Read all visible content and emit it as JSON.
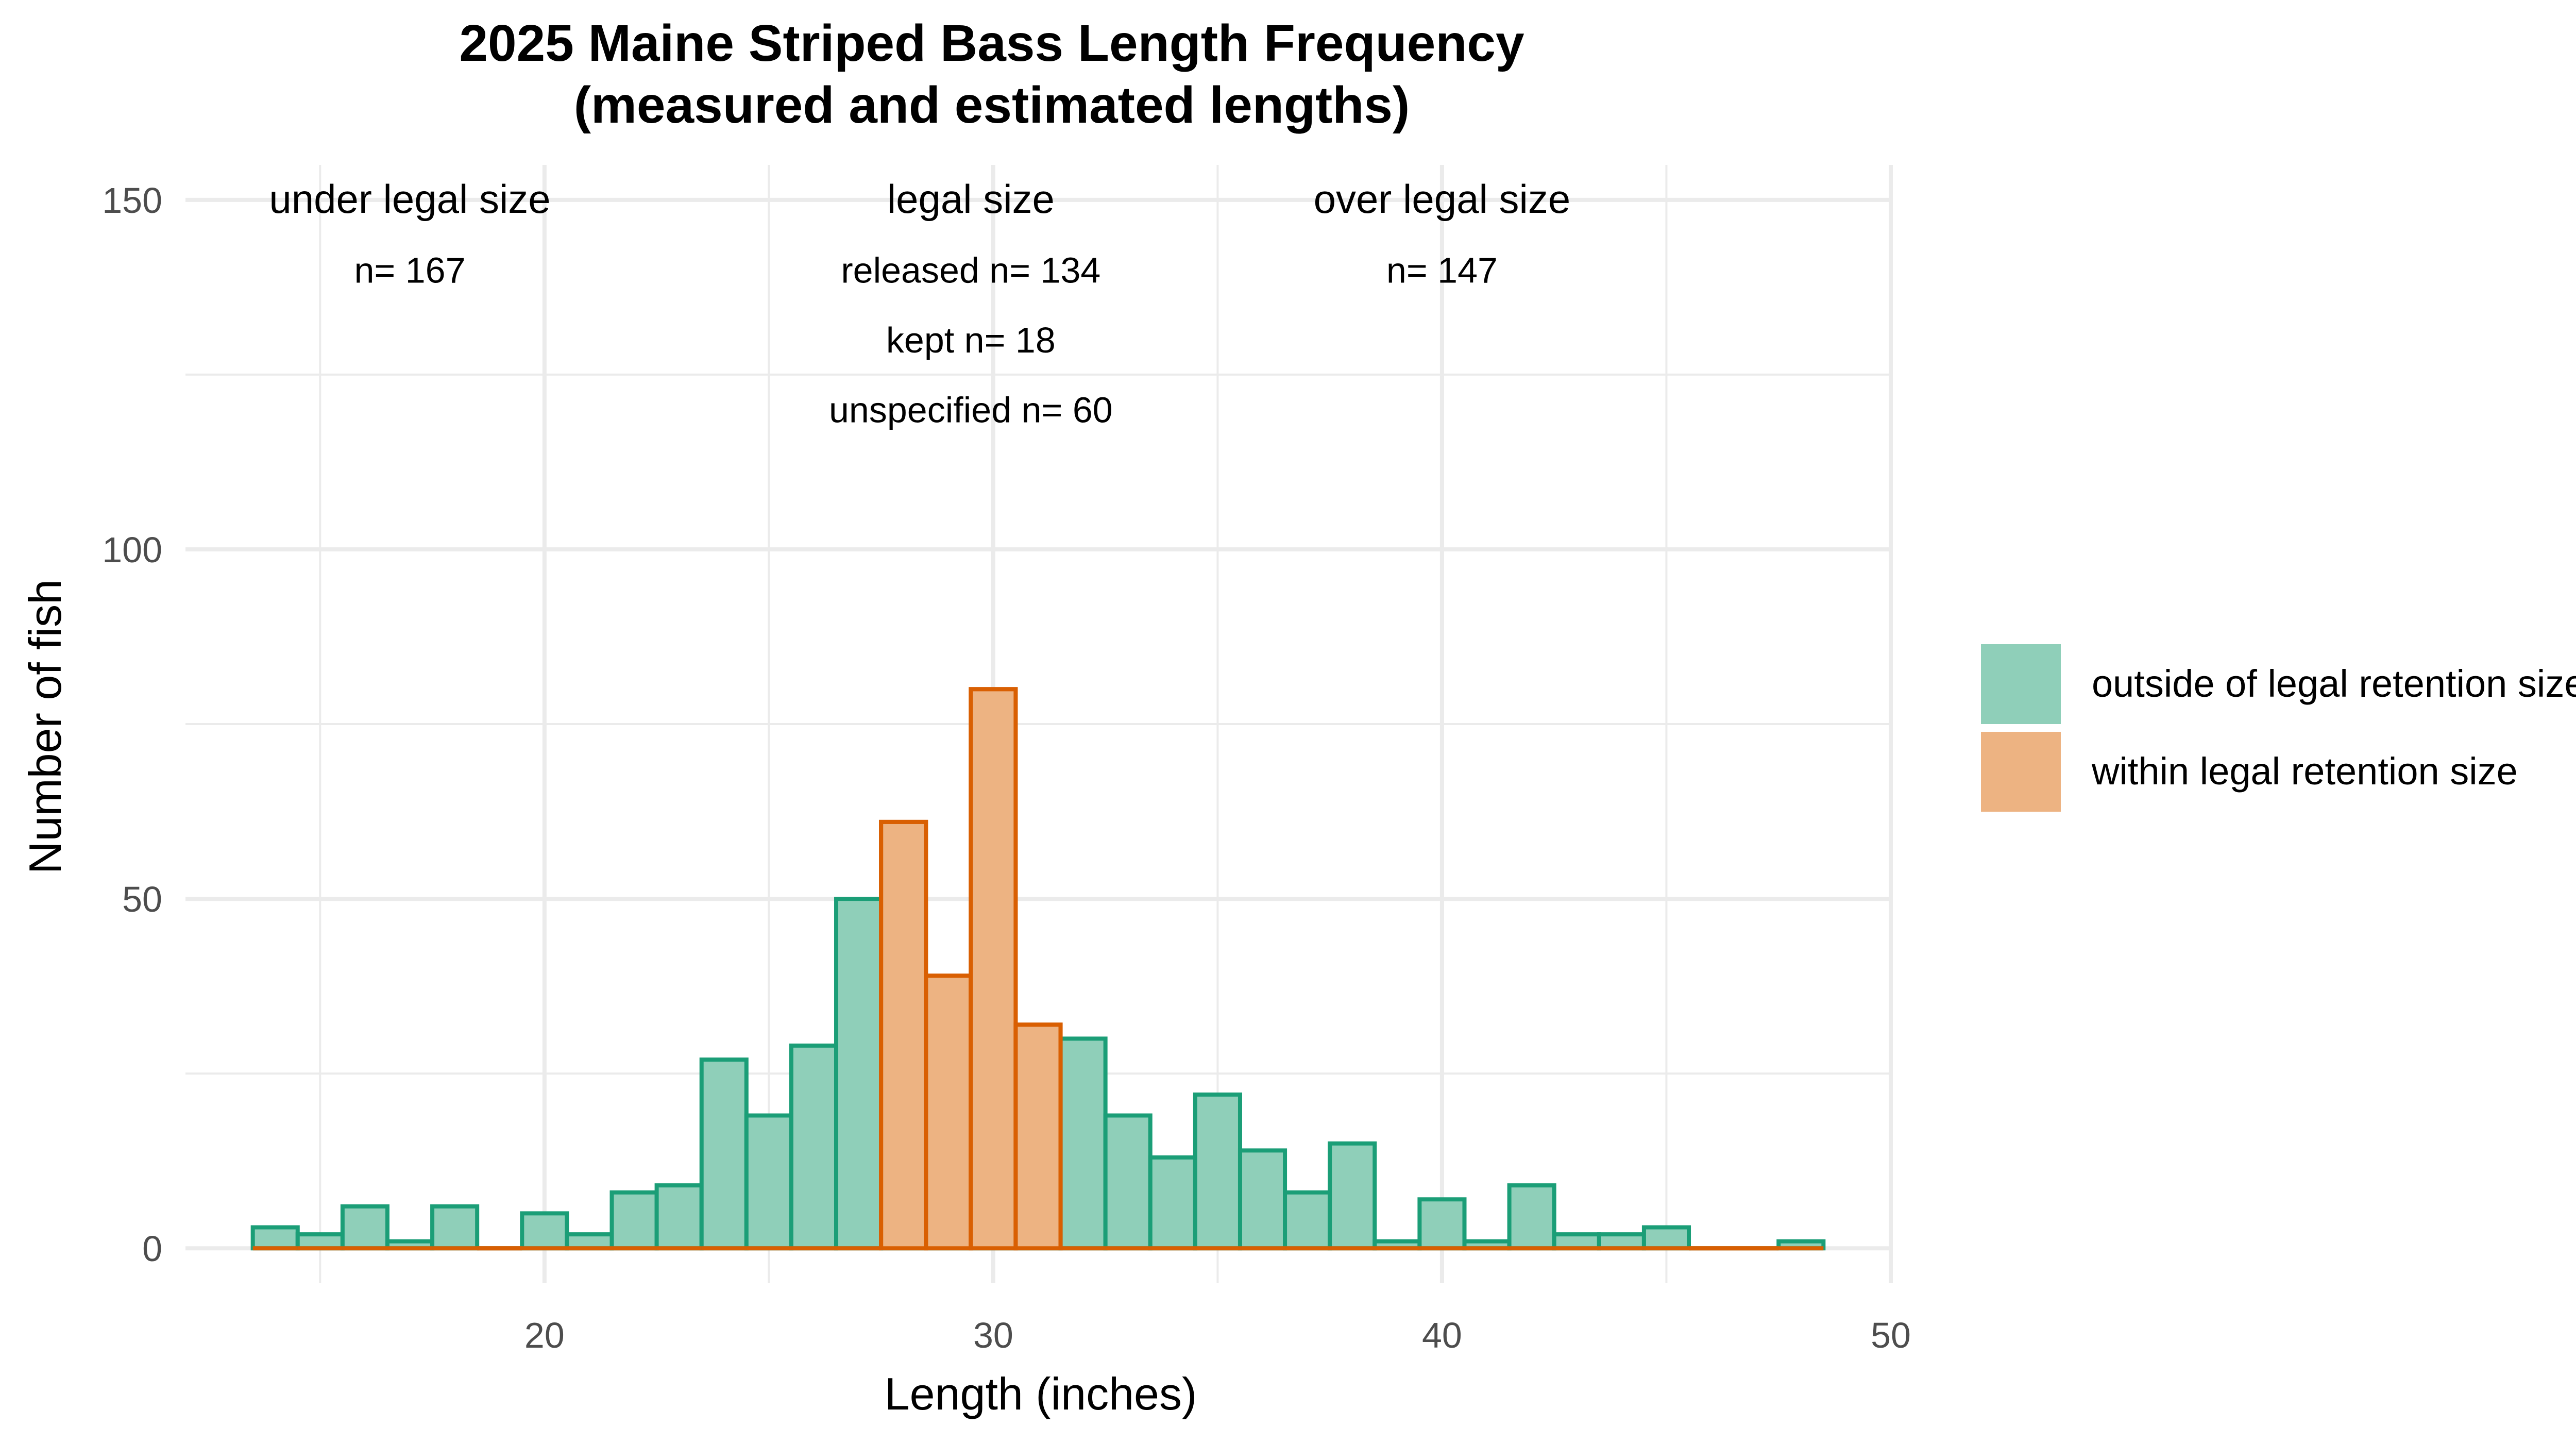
{
  "chart_data": {
    "type": "bar",
    "title": "2025 Maine Striped Bass Length Frequency",
    "subtitle": "(measured and estimated lengths)",
    "xlabel": "Length (inches)",
    "ylabel": "Number of fish",
    "xlim": [
      12,
      50
    ],
    "ylim": [
      -5,
      155
    ],
    "x_ticks": [
      20,
      30,
      40,
      50
    ],
    "y_ticks": [
      0,
      50,
      100,
      150
    ],
    "grid": true,
    "legend_position": "right",
    "bin_width": 1,
    "series": [
      {
        "name": "outside of legal retention size",
        "fill": "#8fcfb9",
        "stroke": "#1b9e77",
        "x": [
          14,
          15,
          16,
          17,
          18,
          19,
          20,
          21,
          22,
          23,
          24,
          25,
          26,
          27,
          28,
          29,
          30,
          31,
          32,
          33,
          34,
          35,
          36,
          37,
          38,
          39,
          40,
          41,
          42,
          43,
          44,
          45,
          46,
          47,
          48
        ],
        "values": [
          3,
          2,
          6,
          1,
          6,
          0,
          5,
          2,
          8,
          9,
          27,
          19,
          29,
          50,
          0,
          0,
          0,
          0,
          30,
          19,
          13,
          22,
          14,
          8,
          15,
          1,
          7,
          1,
          9,
          2,
          2,
          3,
          0,
          0,
          1
        ]
      },
      {
        "name": "within legal retention size",
        "fill": "#edb382",
        "stroke": "#d95f02",
        "x": [
          14,
          15,
          16,
          17,
          18,
          19,
          20,
          21,
          22,
          23,
          24,
          25,
          26,
          27,
          28,
          29,
          30,
          31,
          32,
          33,
          34,
          35,
          36,
          37,
          38,
          39,
          40,
          41,
          42,
          43,
          44,
          45,
          46,
          47,
          48
        ],
        "values": [
          0,
          0,
          0,
          0,
          0,
          0,
          0,
          0,
          0,
          0,
          0,
          0,
          0,
          0,
          61,
          39,
          80,
          32,
          0,
          0,
          0,
          0,
          0,
          0,
          0,
          0,
          0,
          0,
          0,
          0,
          0,
          0,
          0,
          0,
          0
        ]
      }
    ],
    "annotations": [
      {
        "x": 17,
        "lines": [
          {
            "text": "under legal size",
            "y": 150
          },
          {
            "text": "n= 167",
            "y": 140
          }
        ]
      },
      {
        "x": 29.5,
        "lines": [
          {
            "text": "legal size",
            "y": 150
          },
          {
            "text": "released n= 134",
            "y": 140
          },
          {
            "text": "kept n= 18",
            "y": 130
          },
          {
            "text": "unspecified n= 60",
            "y": 120
          }
        ]
      },
      {
        "x": 40,
        "lines": [
          {
            "text": "over legal size",
            "y": 150
          },
          {
            "text": "n= 147",
            "y": 140
          }
        ]
      }
    ]
  }
}
